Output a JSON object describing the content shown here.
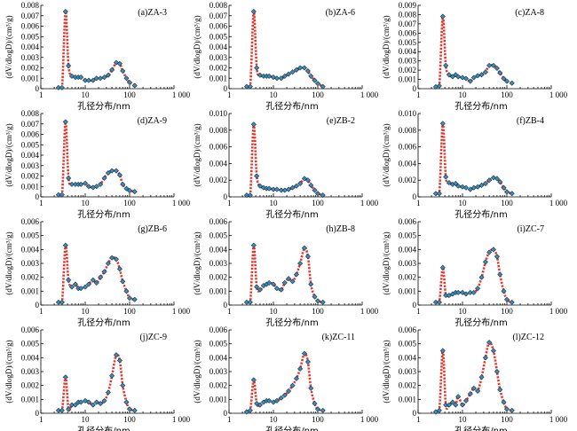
{
  "figure": {
    "xlabel": "孔径分布/nm",
    "ylabel": "(dV/dlogD)/(cm³/g)",
    "xticks": [
      1,
      10,
      100,
      1000
    ],
    "xtick_labels": [
      "1",
      "10",
      "100",
      "1 000"
    ]
  },
  "chart_data": [
    {
      "type": "scatter",
      "title": "(a)ZA-3",
      "xlim": [
        1,
        1000
      ],
      "ylim": [
        0,
        0.008
      ],
      "yticks": [
        0,
        0.001,
        0.002,
        0.003,
        0.004,
        0.005,
        0.006,
        0.007,
        0.008
      ],
      "ytick_labels": [
        "0",
        "0.001",
        "0.002",
        "0.003",
        "0.004",
        "0.005",
        "0.006",
        "0.007",
        "0.008"
      ],
      "x": [
        2.5,
        3,
        3.6,
        4.2,
        5,
        6,
        7,
        8,
        10,
        12,
        15,
        18,
        22,
        27,
        33,
        40,
        50,
        60,
        70,
        85,
        100,
        130
      ],
      "y": [
        0.0001,
        0.0001,
        0.0074,
        0.0022,
        0.0012,
        0.0011,
        0.0011,
        0.0011,
        0.0008,
        0.0008,
        0.0008,
        0.001,
        0.001,
        0.0011,
        0.0013,
        0.0018,
        0.0025,
        0.0024,
        0.0017,
        0.001,
        0.0006,
        0.0003
      ]
    },
    {
      "type": "scatter",
      "title": "(b)ZA-6",
      "xlim": [
        1,
        1000
      ],
      "ylim": [
        0,
        0.008
      ],
      "yticks": [
        0,
        0.001,
        0.002,
        0.003,
        0.004,
        0.005,
        0.006,
        0.007,
        0.008
      ],
      "ytick_labels": [
        "0",
        "0.001",
        "0.002",
        "0.003",
        "0.004",
        "0.005",
        "0.006",
        "0.007",
        "0.008"
      ],
      "x": [
        2.5,
        3,
        3.6,
        4.2,
        5,
        6,
        7,
        8,
        10,
        12,
        15,
        18,
        22,
        27,
        33,
        40,
        50,
        60,
        70,
        85,
        100,
        130
      ],
      "y": [
        0.0002,
        0.0002,
        0.0074,
        0.002,
        0.0013,
        0.0012,
        0.0012,
        0.0012,
        0.0011,
        0.001,
        0.001,
        0.0012,
        0.0014,
        0.0016,
        0.0018,
        0.002,
        0.002,
        0.0017,
        0.0012,
        0.0008,
        0.0005,
        0.0002
      ]
    },
    {
      "type": "scatter",
      "title": "(c)ZA-8",
      "xlim": [
        1,
        1000
      ],
      "ylim": [
        0,
        0.009
      ],
      "yticks": [
        0,
        0.001,
        0.002,
        0.003,
        0.004,
        0.005,
        0.006,
        0.007,
        0.008,
        0.009
      ],
      "ytick_labels": [
        "0",
        "0.001",
        "0.002",
        "0.003",
        "0.004",
        "0.005",
        "0.006",
        "0.007",
        "0.008",
        "0.009"
      ],
      "x": [
        2.5,
        3,
        3.6,
        4.2,
        5,
        6,
        7,
        8,
        10,
        12,
        15,
        18,
        22,
        27,
        33,
        40,
        50,
        60,
        70,
        85,
        100,
        130
      ],
      "y": [
        0.0002,
        0.0003,
        0.0078,
        0.0025,
        0.0015,
        0.0013,
        0.0015,
        0.0013,
        0.0012,
        0.0011,
        0.0008,
        0.0012,
        0.0014,
        0.0015,
        0.0018,
        0.0025,
        0.0025,
        0.0022,
        0.0017,
        0.0011,
        0.0008,
        0.0006
      ]
    },
    {
      "type": "scatter",
      "title": "(d)ZA-9",
      "xlim": [
        1,
        1000
      ],
      "ylim": [
        0,
        0.008
      ],
      "yticks": [
        0,
        0.001,
        0.002,
        0.003,
        0.004,
        0.005,
        0.006,
        0.007,
        0.008
      ],
      "ytick_labels": [
        "0",
        "0.001",
        "0.002",
        "0.003",
        "0.004",
        "0.005",
        "0.006",
        "0.007",
        "0.008"
      ],
      "x": [
        2.5,
        3,
        3.6,
        4.2,
        5,
        6,
        7,
        8,
        10,
        12,
        15,
        18,
        22,
        27,
        33,
        40,
        50,
        60,
        70,
        85,
        100,
        130
      ],
      "y": [
        0.0002,
        0.0002,
        0.0072,
        0.0018,
        0.0012,
        0.0012,
        0.0012,
        0.0012,
        0.0013,
        0.001,
        0.0009,
        0.001,
        0.0012,
        0.0018,
        0.0023,
        0.0025,
        0.0025,
        0.0021,
        0.0012,
        0.0008,
        0.0006,
        0.0005
      ]
    },
    {
      "type": "scatter",
      "title": "(e)ZB-2",
      "xlim": [
        1,
        1000
      ],
      "ylim": [
        0,
        0.01
      ],
      "yticks": [
        0,
        0.002,
        0.004,
        0.006,
        0.008,
        0.01
      ],
      "ytick_labels": [
        "0",
        "0.002",
        "0.004",
        "0.006",
        "0.008",
        "0.010"
      ],
      "x": [
        2.5,
        3,
        3.6,
        4.2,
        5,
        6,
        7,
        8,
        10,
        12,
        15,
        18,
        22,
        27,
        33,
        40,
        50,
        60,
        70,
        85,
        100,
        130
      ],
      "y": [
        0.0002,
        0.0002,
        0.0087,
        0.0025,
        0.0013,
        0.0011,
        0.001,
        0.001,
        0.0009,
        0.0009,
        0.0008,
        0.0008,
        0.0009,
        0.0011,
        0.0013,
        0.0016,
        0.0022,
        0.002,
        0.0014,
        0.0008,
        0.0004,
        0.0002
      ]
    },
    {
      "type": "scatter",
      "title": "(f)ZB-4",
      "xlim": [
        1,
        1000
      ],
      "ylim": [
        0,
        0.01
      ],
      "yticks": [
        0,
        0.002,
        0.004,
        0.006,
        0.008,
        0.01
      ],
      "ytick_labels": [
        "0",
        "0.002",
        "0.004",
        "0.006",
        "0.008",
        "0.010"
      ],
      "x": [
        2.5,
        3,
        3.6,
        4.2,
        5,
        6,
        7,
        8,
        10,
        12,
        15,
        18,
        22,
        27,
        33,
        40,
        50,
        60,
        70,
        85,
        100,
        130
      ],
      "y": [
        0.0004,
        0.0004,
        0.0088,
        0.0024,
        0.0017,
        0.0015,
        0.0016,
        0.0013,
        0.0012,
        0.0011,
        0.0009,
        0.0011,
        0.0012,
        0.0014,
        0.0016,
        0.002,
        0.0023,
        0.0022,
        0.0018,
        0.0011,
        0.0006,
        0.0004
      ]
    },
    {
      "type": "scatter",
      "title": "(g)ZB-6",
      "xlim": [
        1,
        1000
      ],
      "ylim": [
        0,
        0.006
      ],
      "yticks": [
        0,
        0.001,
        0.002,
        0.003,
        0.004,
        0.005,
        0.006
      ],
      "ytick_labels": [
        "0",
        "0.001",
        "0.002",
        "0.003",
        "0.004",
        "0.005",
        "0.006"
      ],
      "x": [
        2.5,
        3,
        3.6,
        4.2,
        5,
        6,
        7,
        8,
        10,
        12,
        15,
        18,
        22,
        27,
        33,
        40,
        50,
        60,
        70,
        85,
        100,
        130
      ],
      "y": [
        0.0002,
        0.0002,
        0.0043,
        0.0018,
        0.0013,
        0.0015,
        0.0012,
        0.0012,
        0.0013,
        0.0015,
        0.0018,
        0.0016,
        0.002,
        0.0024,
        0.003,
        0.0034,
        0.0033,
        0.0026,
        0.0017,
        0.001,
        0.0005,
        0.0004
      ]
    },
    {
      "type": "scatter",
      "title": "(h)ZB-8",
      "xlim": [
        1,
        1000
      ],
      "ylim": [
        0,
        0.006
      ],
      "yticks": [
        0,
        0.001,
        0.002,
        0.003,
        0.004,
        0.005,
        0.006
      ],
      "ytick_labels": [
        "0",
        "0.001",
        "0.002",
        "0.003",
        "0.004",
        "0.005",
        "0.006"
      ],
      "x": [
        2.5,
        3,
        3.6,
        4.2,
        5,
        6,
        7,
        8,
        10,
        12,
        15,
        18,
        22,
        27,
        33,
        40,
        50,
        60,
        70,
        85,
        100,
        130
      ],
      "y": [
        0.0002,
        0.0002,
        0.0043,
        0.0013,
        0.0011,
        0.0014,
        0.0015,
        0.0016,
        0.0015,
        0.0012,
        0.0011,
        0.0016,
        0.0019,
        0.0017,
        0.0022,
        0.003,
        0.0041,
        0.0035,
        0.0015,
        0.0006,
        0.0003,
        0.0002
      ]
    },
    {
      "type": "scatter",
      "title": "(i)ZC-7",
      "xlim": [
        1,
        1000
      ],
      "ylim": [
        0,
        0.006
      ],
      "yticks": [
        0,
        0.001,
        0.002,
        0.003,
        0.004,
        0.005,
        0.006
      ],
      "ytick_labels": [
        "0",
        "0.001",
        "0.002",
        "0.003",
        "0.004",
        "0.005",
        "0.006"
      ],
      "x": [
        2.5,
        3,
        3.6,
        4.2,
        5,
        6,
        7,
        8,
        10,
        12,
        15,
        18,
        22,
        27,
        33,
        40,
        50,
        60,
        70,
        85,
        100,
        130
      ],
      "y": [
        0.0002,
        0.0002,
        0.0027,
        0.0007,
        0.0007,
        0.0008,
        0.0009,
        0.0009,
        0.0009,
        0.0008,
        0.0009,
        0.0009,
        0.0012,
        0.002,
        0.0031,
        0.0038,
        0.004,
        0.0035,
        0.0022,
        0.001,
        0.0004,
        0.0002
      ]
    },
    {
      "type": "scatter",
      "title": "(j)ZC-9",
      "xlim": [
        1,
        1000
      ],
      "ylim": [
        0,
        0.006
      ],
      "yticks": [
        0,
        0.001,
        0.002,
        0.003,
        0.004,
        0.005,
        0.006
      ],
      "ytick_labels": [
        "0",
        "0.001",
        "0.002",
        "0.003",
        "0.004",
        "0.005",
        "0.006"
      ],
      "x": [
        2.5,
        3,
        3.6,
        4.2,
        5,
        6,
        7,
        8,
        10,
        12,
        15,
        18,
        22,
        27,
        33,
        40,
        50,
        60,
        70,
        85,
        100,
        130
      ],
      "y": [
        0.0002,
        0.0002,
        0.0026,
        0.0003,
        0.0006,
        0.0006,
        0.0008,
        0.0008,
        0.0009,
        0.0008,
        0.0006,
        0.0008,
        0.0007,
        0.0009,
        0.0015,
        0.0027,
        0.0042,
        0.0038,
        0.002,
        0.0008,
        0.0003,
        0.0002
      ]
    },
    {
      "type": "scatter",
      "title": "(k)ZC-11",
      "xlim": [
        1,
        1000
      ],
      "ylim": [
        0,
        0.006
      ],
      "yticks": [
        0,
        0.001,
        0.002,
        0.003,
        0.004,
        0.005,
        0.006
      ],
      "ytick_labels": [
        "0",
        "0.001",
        "0.002",
        "0.003",
        "0.004",
        "0.005",
        "0.006"
      ],
      "x": [
        2.5,
        3,
        3.6,
        4.2,
        5,
        6,
        7,
        8,
        10,
        12,
        15,
        18,
        22,
        27,
        33,
        40,
        50,
        60,
        70,
        85,
        100,
        130
      ],
      "y": [
        0.0001,
        0.0002,
        0.0024,
        0.0007,
        0.0006,
        0.0008,
        0.0009,
        0.0009,
        0.0008,
        0.0009,
        0.0011,
        0.0013,
        0.0016,
        0.002,
        0.0025,
        0.0032,
        0.0043,
        0.0037,
        0.0018,
        0.0007,
        0.0003,
        0.0002
      ]
    },
    {
      "type": "scatter",
      "title": "(l)ZC-12",
      "xlim": [
        1,
        1000
      ],
      "ylim": [
        0,
        0.006
      ],
      "yticks": [
        0,
        0.001,
        0.002,
        0.003,
        0.004,
        0.005,
        0.006
      ],
      "ytick_labels": [
        "0",
        "0.001",
        "0.002",
        "0.003",
        "0.004",
        "0.005",
        "0.006"
      ],
      "x": [
        2.5,
        3,
        3.6,
        4.2,
        5,
        6,
        7,
        8,
        10,
        12,
        15,
        18,
        22,
        27,
        33,
        40,
        50,
        60,
        70,
        85,
        100,
        130
      ],
      "y": [
        0.0001,
        0.0002,
        0.0045,
        0.0006,
        0.0006,
        0.0008,
        0.0006,
        0.0012,
        0.0006,
        0.0009,
        0.0014,
        0.0018,
        0.0016,
        0.0026,
        0.004,
        0.0051,
        0.0045,
        0.003,
        0.0017,
        0.0008,
        0.0003,
        0.0002
      ]
    }
  ]
}
